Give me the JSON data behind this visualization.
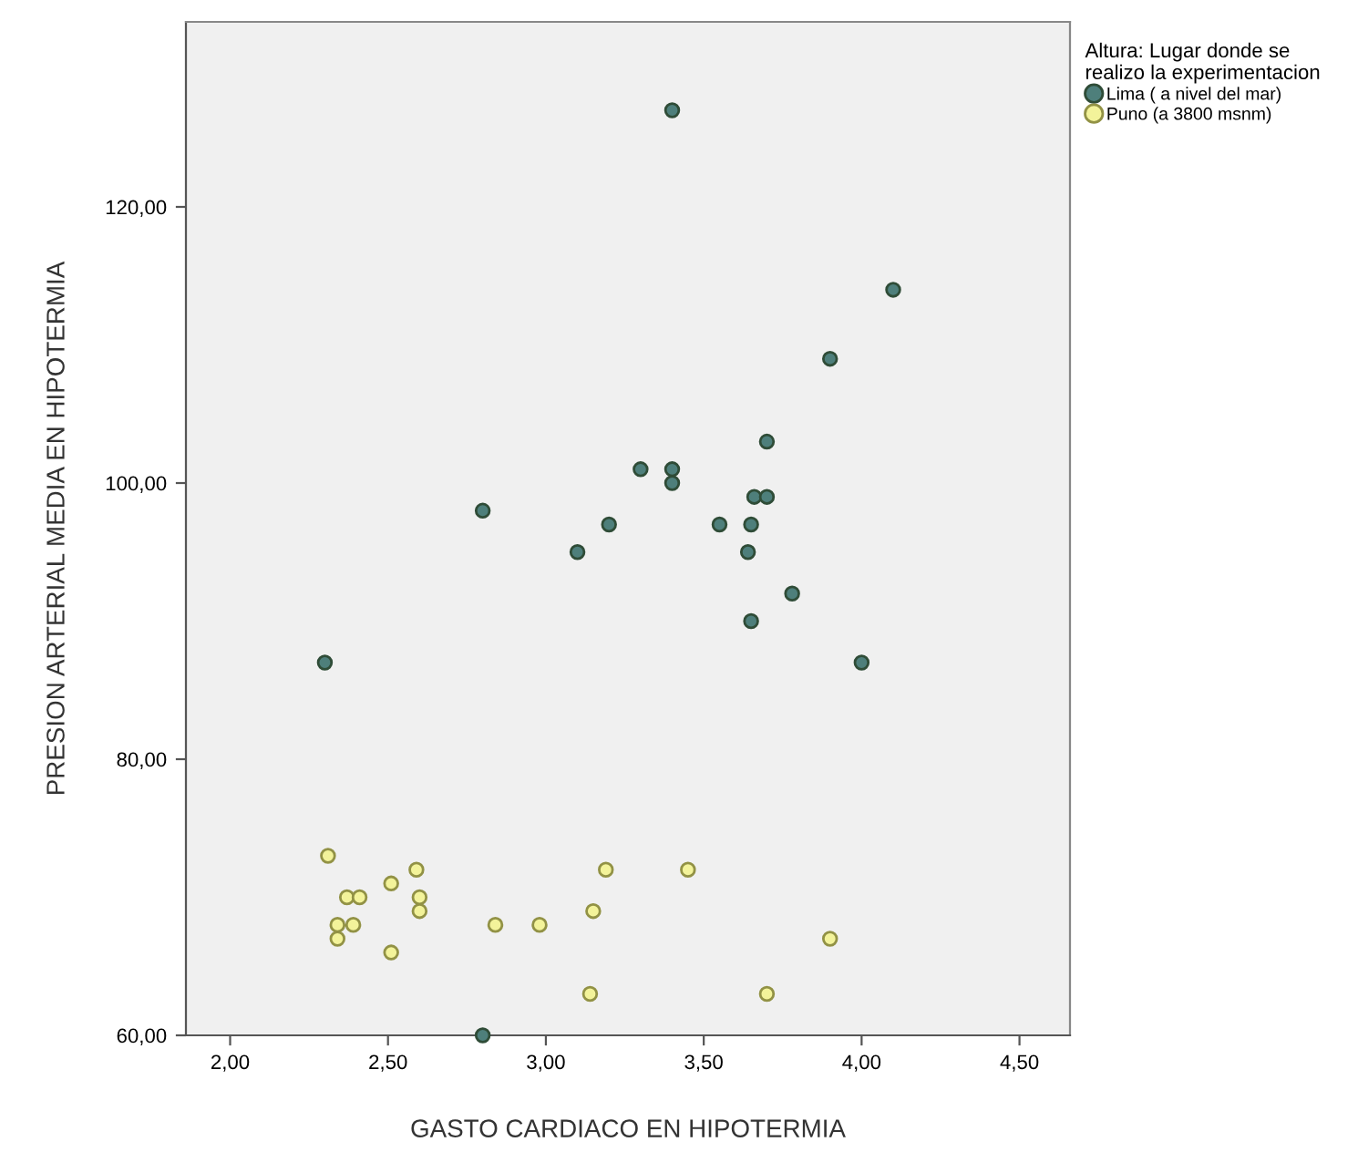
{
  "chart_data": {
    "type": "scatter",
    "xlabel": "GASTO CARDIACO EN HIPOTERMIA",
    "ylabel": "PRESION ARTERIAL MEDIA EN HIPOTERMIA",
    "legend_title": "Altura: Lugar donde se\nrealizo la experimentacion",
    "legend": "top right",
    "marker": "circle",
    "grid": false,
    "xlim": [
      1.86,
      4.66
    ],
    "ylim": [
      60,
      133.4
    ],
    "xticks": [
      {
        "value": 2.0,
        "label": "2,00"
      },
      {
        "value": 2.5,
        "label": "2,50"
      },
      {
        "value": 3.0,
        "label": "3,00"
      },
      {
        "value": 3.5,
        "label": "3,50"
      },
      {
        "value": 4.0,
        "label": "4,00"
      },
      {
        "value": 4.5,
        "label": "4,50"
      }
    ],
    "yticks": [
      {
        "value": 60,
        "label": "60,00"
      },
      {
        "value": 80,
        "label": "80,00"
      },
      {
        "value": 100,
        "label": "100,00"
      },
      {
        "value": 120,
        "label": "120,00"
      }
    ],
    "series": [
      {
        "name": "Lima ( a nivel del mar)",
        "color": "#4e7f7b",
        "x": [
          3.4,
          4.1,
          3.9,
          3.7,
          3.3,
          3.4,
          3.4,
          3.66,
          3.7,
          2.8,
          3.2,
          3.55,
          3.65,
          3.1,
          3.64,
          3.78,
          3.65,
          2.3,
          4.0,
          2.8
        ],
        "values": [
          127,
          114,
          109,
          103,
          101,
          101,
          100,
          99,
          99,
          98,
          97,
          97,
          97,
          95,
          95,
          92,
          90,
          87,
          87,
          60
        ]
      },
      {
        "name": "Puno (a 3800 msnm)",
        "color": "#f3f39a",
        "x": [
          2.31,
          2.59,
          3.19,
          3.45,
          2.51,
          2.37,
          2.41,
          2.6,
          2.6,
          3.15,
          2.34,
          2.39,
          2.84,
          2.98,
          2.34,
          3.9,
          2.51,
          3.14,
          3.7
        ],
        "values": [
          73,
          72,
          72,
          72,
          71,
          70,
          70,
          70,
          69,
          69,
          68,
          68,
          68,
          68,
          67,
          67,
          66,
          63,
          63
        ]
      }
    ]
  }
}
